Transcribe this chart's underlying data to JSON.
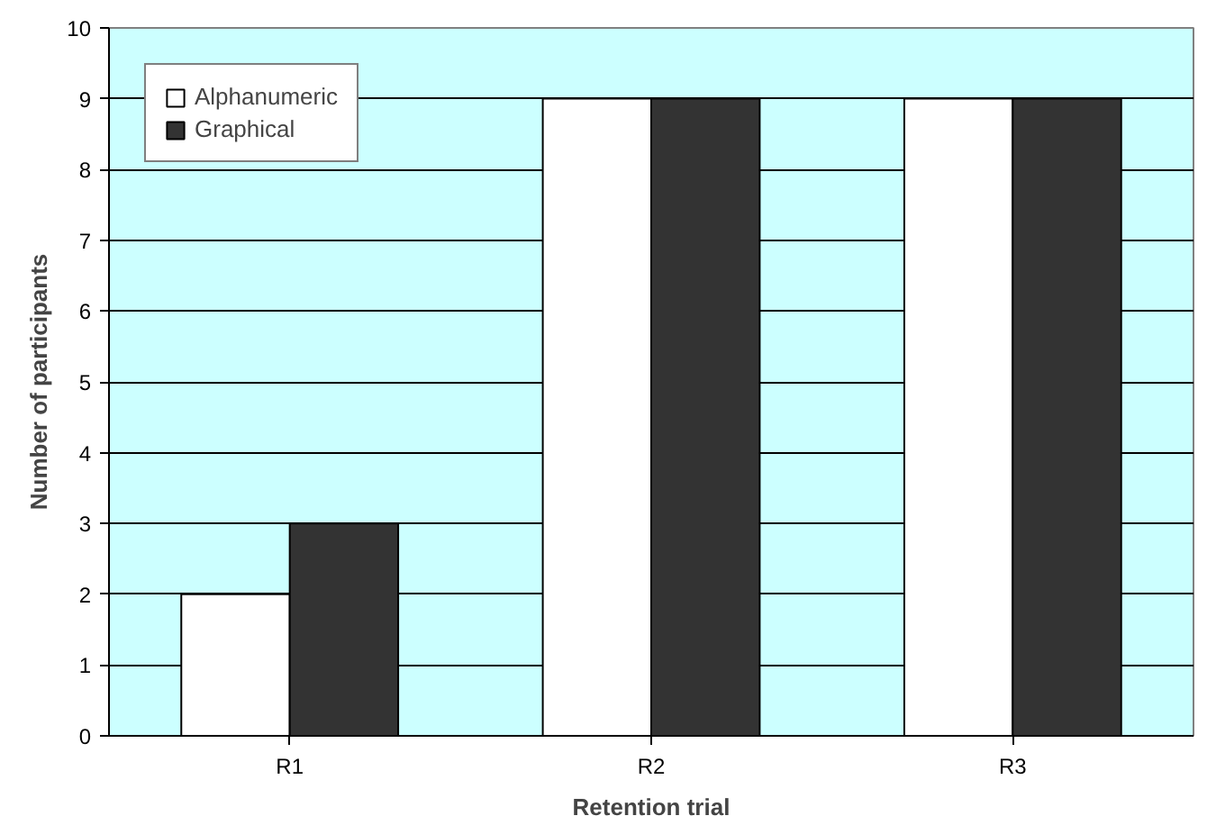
{
  "chart_data": {
    "type": "bar",
    "xlabel": "Retention trial",
    "ylabel": "Number of participants",
    "categories": [
      "R1",
      "R2",
      "R3"
    ],
    "series": [
      {
        "name": "Alphanumeric",
        "color": "#ffffff",
        "values": [
          2,
          9,
          9
        ]
      },
      {
        "name": "Graphical",
        "color": "#333333",
        "values": [
          3,
          9,
          9
        ]
      }
    ],
    "ylim": [
      0,
      10
    ],
    "yticks": [
      0,
      1,
      2,
      3,
      4,
      5,
      6,
      7,
      8,
      9,
      10
    ],
    "grid": "y",
    "legend": "top left"
  }
}
